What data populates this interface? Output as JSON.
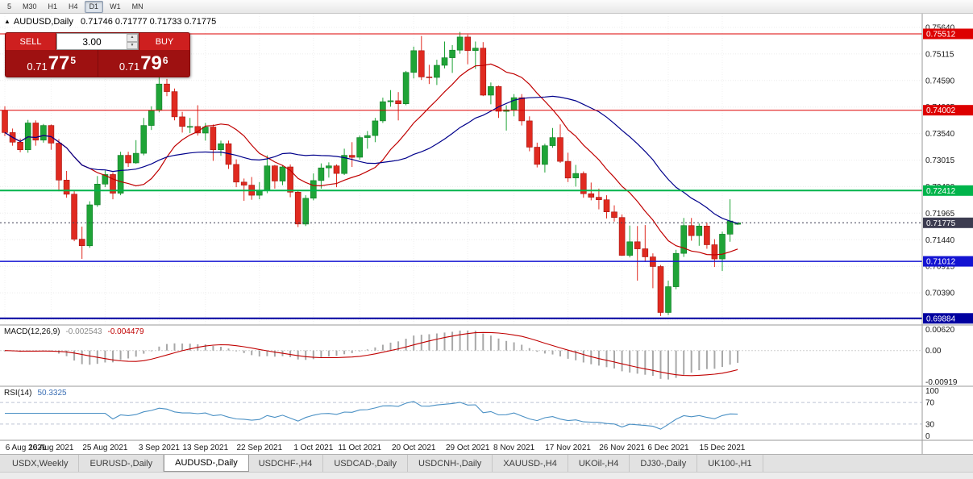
{
  "toolbar": {
    "timeframes": [
      "5",
      "M30",
      "H1",
      "H4",
      "D1",
      "W1",
      "MN"
    ],
    "active": "D1"
  },
  "chart": {
    "header_text": "AUDUSD,Daily   0.71746 0.71777 0.71733 0.71775"
  },
  "icons": {
    "panel_toggle": "▲",
    "volume_up": "▲",
    "volume_down": "▼"
  },
  "trade_panel": {
    "sell_label": "SELL",
    "buy_label": "BUY",
    "volume": "3.00",
    "sell_price": {
      "prefix": "0.71",
      "big": "77",
      "sup": "5"
    },
    "buy_price": {
      "prefix": "0.71",
      "big": "79",
      "sup": "6"
    }
  },
  "chart_data": {
    "type": "candlestick",
    "symbol": "AUDUSD",
    "timeframe": "Daily",
    "ohlc_display": {
      "open": "0.71746",
      "high": "0.71777",
      "low": "0.71733",
      "close": "0.71775"
    },
    "colors": {
      "up": "#1fa437",
      "down": "#e02a20",
      "up_border": "#0e7a24",
      "down_border": "#a31410"
    },
    "price_scale": {
      "top": 0.75911,
      "bottom": 0.69753
    },
    "y_ticks": [
      0.7564,
      0.75115,
      0.7459,
      0.74065,
      0.7354,
      0.73015,
      0.7249,
      0.71965,
      0.7144,
      0.70915,
      0.7039,
      0.69865
    ],
    "levels": [
      {
        "price": 0.75512,
        "label": "0.75512",
        "color": "#dd0000",
        "width": 1,
        "style": "solid"
      },
      {
        "price": 0.74002,
        "label": "0.74002",
        "color": "#dd0000",
        "width": 1,
        "style": "solid"
      },
      {
        "price": 0.72412,
        "label": "0.72412",
        "color": "#00b44b",
        "width": 2,
        "style": "solid"
      },
      {
        "price": 0.71775,
        "label": "0.71775",
        "color": "#3c3c50",
        "width": 1,
        "style": "dotted"
      },
      {
        "price": 0.71012,
        "label": "0.71012",
        "color": "#1414d2",
        "width": 1.5,
        "style": "solid"
      },
      {
        "price": 0.69884,
        "label": "0.69884",
        "color": "#0000a0",
        "width": 2,
        "style": "solid"
      }
    ],
    "ma_lines": [
      {
        "period": 12,
        "color": "#c00000"
      },
      {
        "period": 26,
        "color": "#00008b"
      }
    ],
    "indicators": {
      "macd": {
        "label": "MACD(12,26,9)",
        "macd_value": "-0.002543",
        "signal_value": "-0.004479",
        "params": [
          12,
          26,
          9
        ],
        "histogram_color": "#a8a8a8",
        "signal_color": "#c00000",
        "range": {
          "max": 0.0075,
          "min": -0.0105
        },
        "axis": [
          {
            "v": 0.0062,
            "t": "0.00620"
          },
          {
            "v": 0.0,
            "t": "0.00"
          },
          {
            "v": -0.00919,
            "t": "-0.00919"
          }
        ]
      },
      "rsi": {
        "label": "RSI(14)",
        "value": "50.3325",
        "period": 14,
        "color": "#4a90c4",
        "levels": [
          70,
          30
        ],
        "axis": [
          {
            "v": 100,
            "t": "100"
          },
          {
            "v": 70,
            "t": "70"
          },
          {
            "v": 30,
            "t": "30"
          },
          {
            "v": 0,
            "t": "0"
          }
        ]
      }
    },
    "date_labels": [
      {
        "i": 0,
        "t": "6 Aug 2021"
      },
      {
        "i": 6,
        "t": "16 Aug 2021"
      },
      {
        "i": 13,
        "t": "25 Aug 2021"
      },
      {
        "i": 20,
        "t": "3 Sep 2021"
      },
      {
        "i": 26,
        "t": "13 Sep 2021"
      },
      {
        "i": 33,
        "t": "22 Sep 2021"
      },
      {
        "i": 40,
        "t": "1 Oct 2021"
      },
      {
        "i": 46,
        "t": "11 Oct 2021"
      },
      {
        "i": 53,
        "t": "20 Oct 2021"
      },
      {
        "i": 60,
        "t": "29 Oct 2021"
      },
      {
        "i": 66,
        "t": "8 Nov 2021"
      },
      {
        "i": 73,
        "t": "17 Nov 2021"
      },
      {
        "i": 80,
        "t": "26 Nov 2021"
      },
      {
        "i": 86,
        "t": "6 Dec 2021"
      },
      {
        "i": 93,
        "t": "15 Dec 2021"
      }
    ],
    "candles": [
      [
        0.74,
        0.7408,
        0.7349,
        0.7356
      ],
      [
        0.7356,
        0.7364,
        0.733,
        0.7337
      ],
      [
        0.7337,
        0.7344,
        0.7317,
        0.7322
      ],
      [
        0.7322,
        0.7381,
        0.7316,
        0.7375
      ],
      [
        0.7375,
        0.738,
        0.733,
        0.7341
      ],
      [
        0.7341,
        0.7373,
        0.7336,
        0.737
      ],
      [
        0.737,
        0.7372,
        0.7322,
        0.7335
      ],
      [
        0.7335,
        0.7343,
        0.724,
        0.7262
      ],
      [
        0.7262,
        0.728,
        0.7227,
        0.7234
      ],
      [
        0.7234,
        0.724,
        0.7141,
        0.7145
      ],
      [
        0.7145,
        0.717,
        0.7106,
        0.7132
      ],
      [
        0.7132,
        0.722,
        0.7128,
        0.7213
      ],
      [
        0.7213,
        0.727,
        0.7209,
        0.7254
      ],
      [
        0.7254,
        0.7281,
        0.7248,
        0.7273
      ],
      [
        0.7273,
        0.7277,
        0.7224,
        0.7236
      ],
      [
        0.7236,
        0.7318,
        0.7232,
        0.7311
      ],
      [
        0.7311,
        0.7318,
        0.7288,
        0.7296
      ],
      [
        0.7296,
        0.7341,
        0.7294,
        0.7315
      ],
      [
        0.7315,
        0.7385,
        0.7311,
        0.737
      ],
      [
        0.737,
        0.7408,
        0.7361,
        0.74
      ],
      [
        0.74,
        0.7478,
        0.7396,
        0.7452
      ],
      [
        0.7452,
        0.7462,
        0.7428,
        0.7437
      ],
      [
        0.7437,
        0.7443,
        0.738,
        0.7387
      ],
      [
        0.7387,
        0.7397,
        0.7356,
        0.7368
      ],
      [
        0.7368,
        0.7385,
        0.7355,
        0.7368
      ],
      [
        0.7368,
        0.741,
        0.735,
        0.7355
      ],
      [
        0.7355,
        0.7375,
        0.734,
        0.7367
      ],
      [
        0.7367,
        0.7372,
        0.73,
        0.7322
      ],
      [
        0.7322,
        0.734,
        0.731,
        0.7334
      ],
      [
        0.7334,
        0.734,
        0.7284,
        0.7293
      ],
      [
        0.7293,
        0.7303,
        0.7248,
        0.7258
      ],
      [
        0.7258,
        0.7265,
        0.7221,
        0.7252
      ],
      [
        0.7252,
        0.7268,
        0.7223,
        0.7232
      ],
      [
        0.7232,
        0.7258,
        0.7224,
        0.7241
      ],
      [
        0.7241,
        0.7311,
        0.7236,
        0.729
      ],
      [
        0.729,
        0.7292,
        0.7245,
        0.726
      ],
      [
        0.726,
        0.7292,
        0.7252,
        0.7288
      ],
      [
        0.7288,
        0.7293,
        0.7228,
        0.7238
      ],
      [
        0.7238,
        0.7242,
        0.7169,
        0.7175
      ],
      [
        0.7175,
        0.7232,
        0.7171,
        0.7226
      ],
      [
        0.7226,
        0.7275,
        0.7222,
        0.7261
      ],
      [
        0.7261,
        0.7295,
        0.7245,
        0.7286
      ],
      [
        0.7286,
        0.7297,
        0.7267,
        0.729
      ],
      [
        0.729,
        0.7293,
        0.7248,
        0.7275
      ],
      [
        0.7275,
        0.7324,
        0.7272,
        0.7311
      ],
      [
        0.7311,
        0.7337,
        0.7288,
        0.7307
      ],
      [
        0.7307,
        0.735,
        0.7302,
        0.7346
      ],
      [
        0.7346,
        0.7359,
        0.7324,
        0.735
      ],
      [
        0.735,
        0.7385,
        0.7337,
        0.7379
      ],
      [
        0.7379,
        0.7425,
        0.7375,
        0.7417
      ],
      [
        0.7417,
        0.744,
        0.7407,
        0.7419
      ],
      [
        0.7419,
        0.7436,
        0.738,
        0.7413
      ],
      [
        0.7413,
        0.7478,
        0.741,
        0.7475
      ],
      [
        0.7475,
        0.7526,
        0.7463,
        0.7518
      ],
      [
        0.7518,
        0.7547,
        0.746,
        0.7466
      ],
      [
        0.7466,
        0.749,
        0.7452,
        0.7465
      ],
      [
        0.7465,
        0.75,
        0.745,
        0.7489
      ],
      [
        0.7489,
        0.7536,
        0.7483,
        0.7504
      ],
      [
        0.7504,
        0.7529,
        0.7474,
        0.7519
      ],
      [
        0.7519,
        0.7555,
        0.7512,
        0.7545
      ],
      [
        0.7545,
        0.755,
        0.7491,
        0.7518
      ],
      [
        0.7518,
        0.7536,
        0.7482,
        0.7523
      ],
      [
        0.7523,
        0.7535,
        0.7428,
        0.743
      ],
      [
        0.743,
        0.7455,
        0.7412,
        0.7447
      ],
      [
        0.7447,
        0.7449,
        0.7385,
        0.7398
      ],
      [
        0.7398,
        0.741,
        0.736,
        0.7401
      ],
      [
        0.7401,
        0.7432,
        0.7388,
        0.7425
      ],
      [
        0.7425,
        0.7432,
        0.737,
        0.7379
      ],
      [
        0.7379,
        0.7388,
        0.7319,
        0.7327
      ],
      [
        0.7327,
        0.7336,
        0.7287,
        0.7293
      ],
      [
        0.7293,
        0.7334,
        0.7277,
        0.733
      ],
      [
        0.733,
        0.7365,
        0.7326,
        0.7346
      ],
      [
        0.7346,
        0.7372,
        0.7296,
        0.7299
      ],
      [
        0.7299,
        0.7316,
        0.7258,
        0.7266
      ],
      [
        0.7266,
        0.7292,
        0.7249,
        0.7275
      ],
      [
        0.7275,
        0.7279,
        0.7227,
        0.7235
      ],
      [
        0.7235,
        0.7257,
        0.7222,
        0.7228
      ],
      [
        0.7228,
        0.7245,
        0.7204,
        0.7223
      ],
      [
        0.7223,
        0.7232,
        0.7186,
        0.7199
      ],
      [
        0.7199,
        0.7212,
        0.718,
        0.7188
      ],
      [
        0.7188,
        0.7194,
        0.7112,
        0.7113
      ],
      [
        0.7113,
        0.7172,
        0.7109,
        0.714
      ],
      [
        0.714,
        0.7171,
        0.7063,
        0.7126
      ],
      [
        0.7126,
        0.7173,
        0.71,
        0.711
      ],
      [
        0.711,
        0.7117,
        0.7048,
        0.7091
      ],
      [
        0.7091,
        0.7094,
        0.6993,
        0.7
      ],
      [
        0.7,
        0.7063,
        0.6995,
        0.7051
      ],
      [
        0.7051,
        0.7124,
        0.7046,
        0.7117
      ],
      [
        0.7117,
        0.7187,
        0.711,
        0.7172
      ],
      [
        0.7172,
        0.7187,
        0.7142,
        0.7152
      ],
      [
        0.7152,
        0.7176,
        0.7132,
        0.7171
      ],
      [
        0.7171,
        0.7178,
        0.7126,
        0.7134
      ],
      [
        0.7134,
        0.7145,
        0.709,
        0.7106
      ],
      [
        0.7106,
        0.716,
        0.7082,
        0.7155
      ],
      [
        0.7155,
        0.7224,
        0.714,
        0.7181
      ],
      [
        0.71746,
        0.71777,
        0.71733,
        0.71775
      ]
    ]
  },
  "tabs": {
    "active_index": 2,
    "items": [
      "USDX,Weekly",
      "EURUSD-,Daily",
      "AUDUSD-,Daily",
      "USDCHF-,H4",
      "USDCAD-,Daily",
      "USDCNH-,Daily",
      "XAUUSD-,H4",
      "UKOil-,H4",
      "DJ30-,Daily",
      "UK100-,H1"
    ]
  }
}
